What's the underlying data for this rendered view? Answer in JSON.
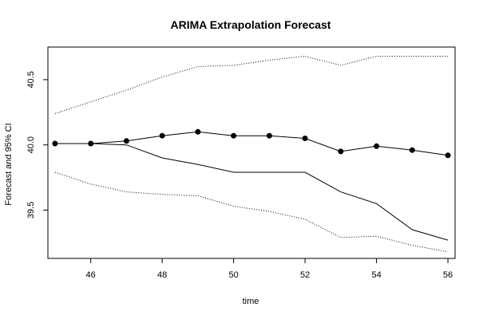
{
  "chart_data": {
    "type": "line",
    "title": "ARIMA Extrapolation Forecast",
    "xlabel": "time",
    "ylabel": "Forecast and 95% CI",
    "xlim": [
      44.8,
      56.2
    ],
    "ylim": [
      39.13,
      40.75
    ],
    "x_ticks": [
      46,
      48,
      50,
      52,
      54,
      56
    ],
    "y_ticks": [
      39.5,
      40.0,
      40.5
    ],
    "x": [
      45,
      46,
      47,
      48,
      49,
      50,
      51,
      52,
      53,
      54,
      55,
      56
    ],
    "series": [
      {
        "style": "dotted",
        "color": "#000000",
        "values": [
          40.24,
          40.33,
          40.42,
          40.52,
          40.6,
          40.61,
          40.65,
          40.68,
          40.61,
          40.68,
          40.68,
          40.68
        ]
      },
      {
        "style": "line-points",
        "color": "#000000",
        "values": [
          40.01,
          40.01,
          40.03,
          40.07,
          40.1,
          40.07,
          40.07,
          40.05,
          39.95,
          39.99,
          39.96,
          39.92
        ]
      },
      {
        "style": "solid",
        "color": "#000000",
        "values": [
          40.01,
          40.01,
          40.0,
          39.9,
          39.85,
          39.79,
          39.79,
          39.79,
          39.64,
          39.55,
          39.35,
          39.27
        ]
      },
      {
        "style": "dotted",
        "color": "#000000",
        "values": [
          39.79,
          39.7,
          39.64,
          39.62,
          39.61,
          39.53,
          39.49,
          39.43,
          39.29,
          39.3,
          39.23,
          39.18
        ]
      }
    ],
    "grid": false,
    "legend": "none"
  }
}
